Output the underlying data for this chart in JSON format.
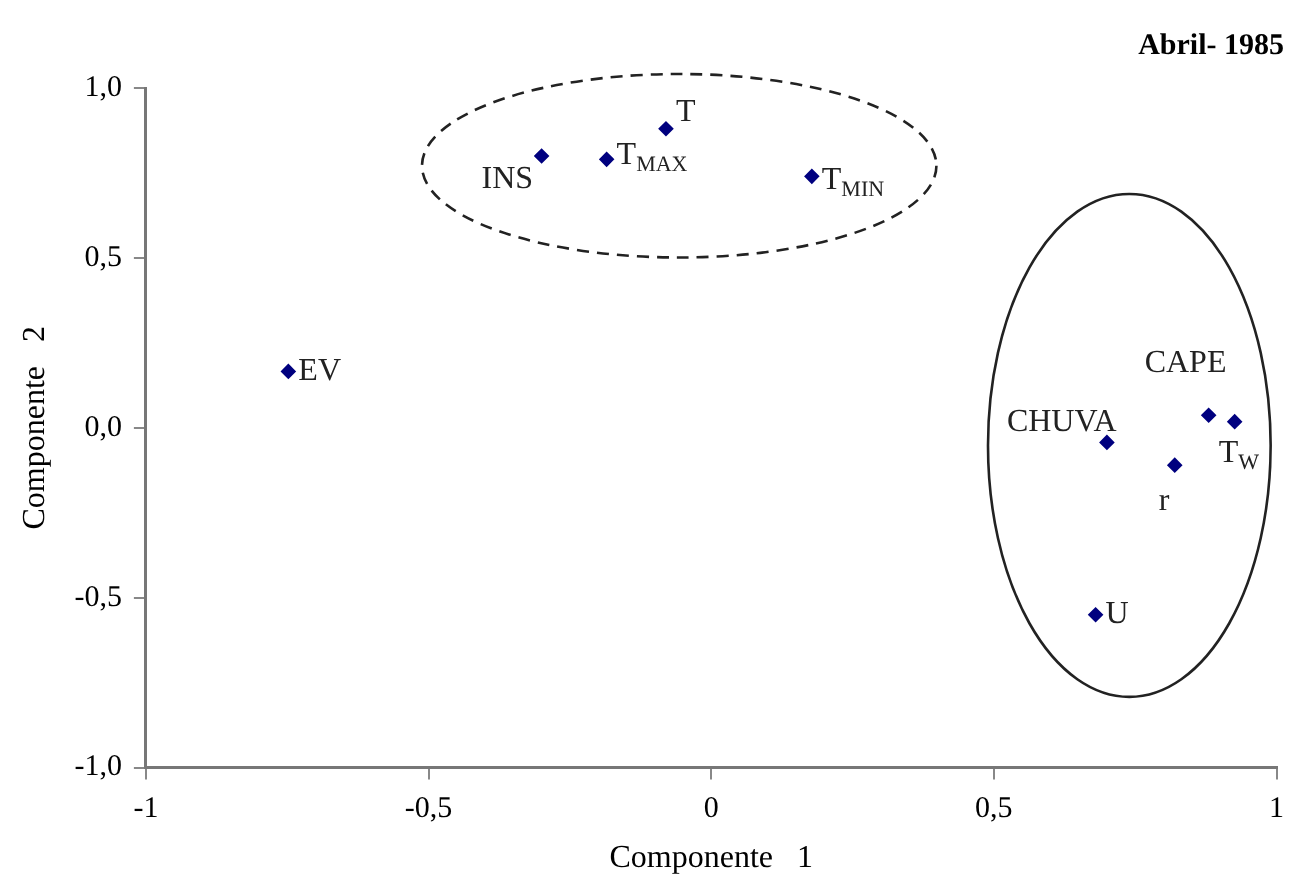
{
  "chart_data": {
    "type": "scatter",
    "title": "Abril- 1985",
    "xlabel": "Componente   1",
    "ylabel": "Componente   2",
    "x": [
      -0.3,
      -0.08,
      -0.185,
      0.178,
      -0.748,
      0.7,
      0.88,
      0.926,
      0.82,
      0.68
    ],
    "series": [
      {
        "color": "#00007f",
        "values": [
          0.8,
          0.88,
          0.79,
          0.74,
          0.166,
          -0.043,
          0.037,
          0.018,
          -0.11,
          -0.55
        ]
      }
    ],
    "annotations": [
      {
        "text": "INS",
        "x": -0.3,
        "y": 0.8
      },
      {
        "text": "T",
        "x": -0.08,
        "y": 0.88
      },
      {
        "text": "T$_{MAX}$",
        "x": -0.185,
        "y": 0.79
      },
      {
        "text": "T$_{MIN}$",
        "x": 0.178,
        "y": 0.74
      },
      {
        "text": "EV",
        "x": -0.748,
        "y": 0.166
      },
      {
        "text": "CHUVA",
        "x": 0.7,
        "y": -0.043
      },
      {
        "text": "CAPE",
        "x": 0.88,
        "y": 0.037
      },
      {
        "text": "T$_{W}$",
        "x": 0.926,
        "y": 0.018
      },
      {
        "text": "r",
        "x": 0.82,
        "y": -0.11
      },
      {
        "text": "U",
        "x": 0.68,
        "y": -0.55
      }
    ],
    "xlim": [
      -1,
      1
    ],
    "ylim": [
      -1,
      1
    ],
    "xticks": [
      -1,
      {
        "value": -0.5,
        "label": "-0,5"
      },
      0,
      {
        "value": 0.5,
        "label": "0,5"
      },
      1
    ],
    "yticks": [
      {
        "value": -1,
        "label": "-1,0"
      },
      {
        "value": -0.5,
        "label": "-0,5"
      },
      {
        "value": 0,
        "label": "0,0"
      },
      {
        "value": 0.5,
        "label": "0,5"
      },
      {
        "value": 1,
        "label": "1,0"
      }
    ],
    "grid": false,
    "legend": false,
    "marker": "diamond"
  }
}
